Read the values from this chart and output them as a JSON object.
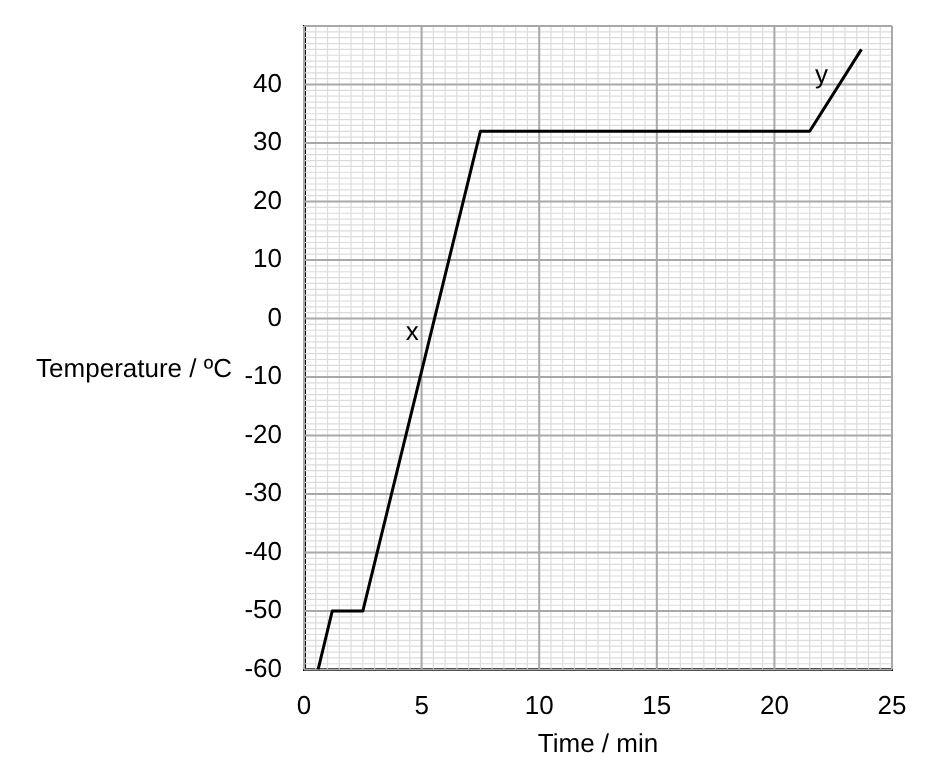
{
  "chart_data": {
    "type": "line",
    "xlabel": "Time / min",
    "ylabel": "Temperature / ºC",
    "series": [
      {
        "color": "#000000",
        "x": [
          0.6,
          1.2,
          2.5,
          7.5,
          21.5,
          23.7
        ],
        "values": [
          -60,
          -50,
          -50,
          32,
          32,
          46
        ]
      }
    ],
    "xlim": [
      0,
      25
    ],
    "xticks": [
      0,
      5,
      10,
      15,
      20,
      25
    ],
    "ylim": [
      -60,
      50
    ],
    "yticks": [
      -60,
      -50,
      -40,
      -30,
      -20,
      -10,
      0,
      10,
      20,
      30,
      40
    ],
    "grid": true,
    "legend": false,
    "marker": "none",
    "line_style": "solid",
    "annotations": [
      {
        "text": "x",
        "x": 5.3,
        "y": -4
      },
      {
        "text": "y",
        "x": 22.7,
        "y": 40
      }
    ]
  }
}
